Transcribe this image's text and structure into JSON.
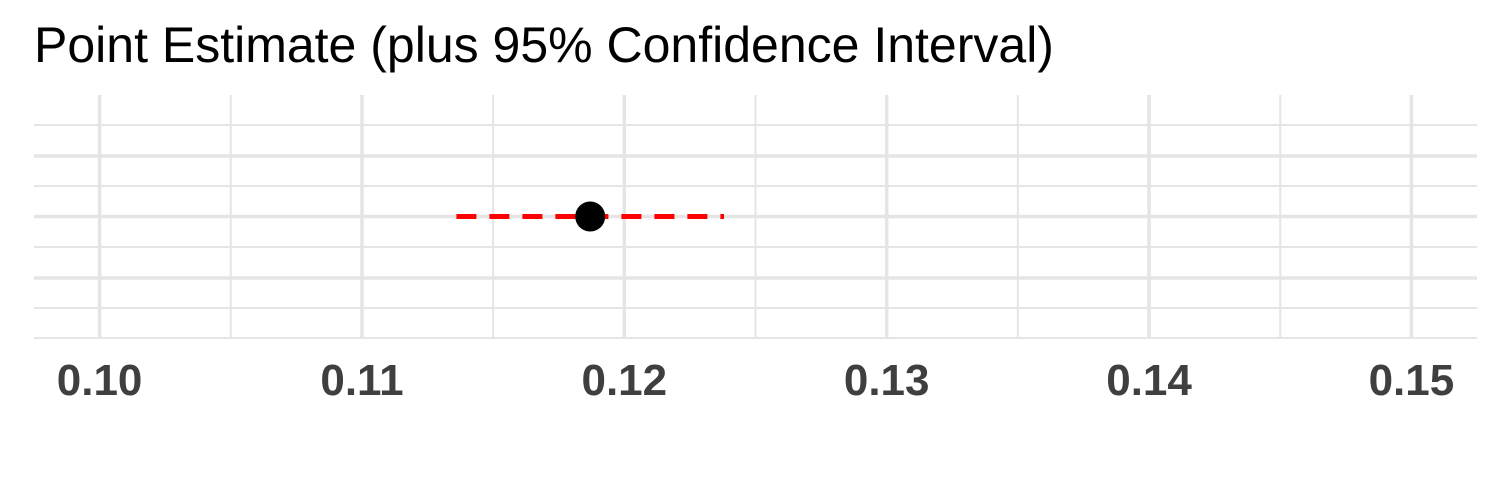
{
  "chart_data": {
    "type": "scatter",
    "title": "Point Estimate (plus 95% Confidence Interval)",
    "xlabel": "",
    "ylabel": "",
    "xlim": [
      0.0975,
      0.1525
    ],
    "x_ticks": [
      0.1,
      0.11,
      0.12,
      0.13,
      0.14,
      0.15
    ],
    "x_tick_labels": [
      "0.10",
      "0.11",
      "0.12",
      "0.13",
      "0.14",
      "0.15"
    ],
    "points": [
      {
        "estimate": 0.1187,
        "ci_lower": 0.1136,
        "ci_upper": 0.1238
      }
    ],
    "grid": true,
    "colors": {
      "point": "#000000",
      "interval": "#ff0000",
      "grid": "#e5e5e5",
      "tick_label": "#3f3f3f"
    }
  }
}
